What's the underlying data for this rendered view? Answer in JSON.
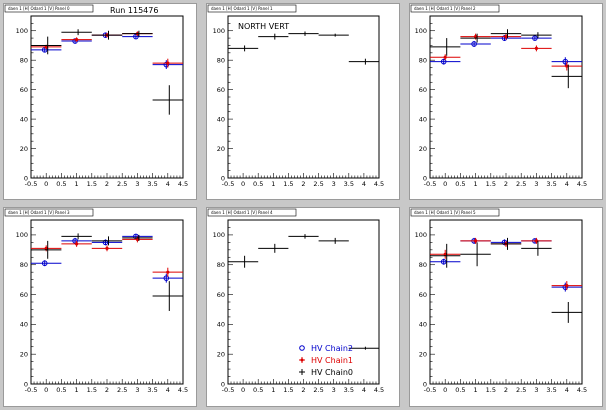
{
  "run_label": "Run 115476",
  "colors": {
    "chain2": "#0000cc",
    "chain1": "#dd0000",
    "chain0": "#000000"
  },
  "chart_data": [
    {
      "type": "scatter",
      "tag": "daen 1 [H] Odard 1 [V] Panel 0",
      "title": "",
      "xlim": [
        -0.5,
        4.5
      ],
      "ylim": [
        0,
        110
      ],
      "xticks": [
        "-0.5",
        "0",
        "0.5",
        "1",
        "1.5",
        "2",
        "2.5",
        "3",
        "3.5",
        "4",
        "4.5"
      ],
      "yticks": [
        "0",
        "20",
        "40",
        "60",
        "80",
        "100"
      ],
      "series": [
        {
          "key": "chain2",
          "x": [
            0,
            1,
            2,
            3,
            4
          ],
          "y": [
            87,
            93,
            97,
            96,
            77
          ],
          "yerr": [
            1.5,
            1.5,
            1.5,
            1.5,
            3
          ]
        },
        {
          "key": "chain1",
          "x": [
            0,
            1,
            2,
            3,
            4
          ],
          "y": [
            89,
            94,
            97,
            98,
            78
          ],
          "yerr": [
            1.5,
            1.5,
            1.5,
            1.5,
            3
          ]
        },
        {
          "key": "chain0",
          "x": [
            0,
            1,
            2,
            3,
            4
          ],
          "y": [
            90,
            99,
            97,
            98,
            53
          ],
          "yerr": [
            6,
            2,
            3,
            2,
            10
          ]
        }
      ]
    },
    {
      "type": "scatter",
      "tag": "daen 1 [H] Odard 1 [V] Panel 1",
      "title": "NORTH VERT",
      "xlim": [
        -0.5,
        4.5
      ],
      "ylim": [
        0,
        110
      ],
      "xticks": [
        "-0.5",
        "0",
        "0.5",
        "1",
        "1.5",
        "2",
        "2.5",
        "3",
        "3.5",
        "4",
        "4.5"
      ],
      "yticks": [
        "0",
        "20",
        "40",
        "60",
        "80",
        "100"
      ],
      "series": [
        {
          "key": "chain0",
          "x": [
            0,
            1,
            2,
            3,
            4
          ],
          "y": [
            88,
            96,
            98,
            97,
            79
          ],
          "yerr": [
            2,
            2,
            1.5,
            1,
            2
          ]
        }
      ]
    },
    {
      "type": "scatter",
      "tag": "daen 1 [H] Odard 1 [V] Panel 2",
      "title": "",
      "xlim": [
        -0.5,
        4.5
      ],
      "ylim": [
        0,
        110
      ],
      "xticks": [
        "-0.5",
        "0",
        "0.5",
        "1",
        "1.5",
        "2",
        "2.5",
        "3",
        "3.5",
        "4",
        "4.5"
      ],
      "yticks": [
        "0",
        "20",
        "40",
        "60",
        "80",
        "100"
      ],
      "series": [
        {
          "key": "chain2",
          "x": [
            0,
            1,
            2,
            3,
            4
          ],
          "y": [
            79,
            91,
            95,
            95,
            79
          ],
          "yerr": [
            2,
            2,
            2,
            1.5,
            3
          ]
        },
        {
          "key": "chain1",
          "x": [
            0,
            1,
            2,
            3,
            4
          ],
          "y": [
            82,
            96,
            96,
            88,
            76
          ],
          "yerr": [
            2,
            2,
            2,
            2,
            3
          ]
        },
        {
          "key": "chain0",
          "x": [
            0,
            1,
            2,
            3,
            4
          ],
          "y": [
            89,
            95,
            98,
            97,
            69
          ],
          "yerr": [
            6,
            3,
            3,
            2,
            8
          ]
        }
      ]
    },
    {
      "type": "scatter",
      "tag": "daen 1 [H] Odard 1 [V] Panel 3",
      "title": "",
      "xlim": [
        -0.5,
        4.5
      ],
      "ylim": [
        0,
        110
      ],
      "xticks": [
        "-0.5",
        "0",
        "0.5",
        "1",
        "1.5",
        "2",
        "2.5",
        "3",
        "3.5",
        "4",
        "4.5"
      ],
      "yticks": [
        "0",
        "20",
        "40",
        "60",
        "80",
        "100"
      ],
      "series": [
        {
          "key": "chain2",
          "x": [
            0,
            1,
            2,
            3,
            4
          ],
          "y": [
            81,
            96,
            95,
            99,
            71
          ],
          "yerr": [
            2,
            2,
            2,
            1.5,
            3
          ]
        },
        {
          "key": "chain1",
          "x": [
            0,
            1,
            2,
            3,
            4
          ],
          "y": [
            91,
            94,
            91,
            97,
            75
          ],
          "yerr": [
            2,
            2,
            2,
            2,
            3
          ]
        },
        {
          "key": "chain0",
          "x": [
            0,
            1,
            2,
            3,
            4
          ],
          "y": [
            90,
            99,
            96,
            98,
            59
          ],
          "yerr": [
            6,
            2,
            3,
            2,
            10
          ]
        }
      ]
    },
    {
      "type": "scatter",
      "tag": "daen 1 [H] Odard 1 [V] Panel 4",
      "title": "",
      "xlim": [
        -0.5,
        4.5
      ],
      "ylim": [
        0,
        110
      ],
      "xticks": [
        "-0.5",
        "0",
        "0.5",
        "1",
        "1.5",
        "2",
        "2.5",
        "3",
        "3.5",
        "4",
        "4.5"
      ],
      "yticks": [
        "0",
        "20",
        "40",
        "60",
        "80",
        "100"
      ],
      "series": [
        {
          "key": "chain0",
          "x": [
            0,
            1,
            2,
            3,
            4
          ],
          "y": [
            82,
            91,
            99,
            96,
            24
          ],
          "yerr": [
            4,
            3,
            1.5,
            2,
            1
          ]
        }
      ],
      "legend": {
        "placement": "bottom-right",
        "entries": [
          {
            "key": "chain2",
            "label": "HV Chain2",
            "marker": "circle"
          },
          {
            "key": "chain1",
            "label": "HV Chain1",
            "marker": "star"
          },
          {
            "key": "chain0",
            "label": "HV Chain0",
            "marker": "cross"
          }
        ]
      }
    },
    {
      "type": "scatter",
      "tag": "daen 1 [H] Odard 1 [V] Panel 5",
      "title": "",
      "xlim": [
        -0.5,
        4.5
      ],
      "ylim": [
        0,
        110
      ],
      "xticks": [
        "-0.5",
        "0",
        "0.5",
        "1",
        "1.5",
        "2",
        "2.5",
        "3",
        "3.5",
        "4",
        "4.5"
      ],
      "yticks": [
        "0",
        "20",
        "40",
        "60",
        "80",
        "100"
      ],
      "series": [
        {
          "key": "chain2",
          "x": [
            0,
            1,
            2,
            3,
            4
          ],
          "y": [
            82,
            96,
            95,
            96,
            65
          ],
          "yerr": [
            2,
            2,
            2,
            1.5,
            3
          ]
        },
        {
          "key": "chain1",
          "x": [
            0,
            1,
            2,
            3,
            4
          ],
          "y": [
            87,
            96,
            94,
            96,
            66
          ],
          "yerr": [
            3,
            2,
            2,
            2,
            3
          ]
        },
        {
          "key": "chain0",
          "x": [
            0,
            1,
            2,
            3,
            4
          ],
          "y": [
            86,
            87,
            94,
            91,
            48
          ],
          "yerr": [
            8,
            8,
            4,
            5,
            7
          ]
        }
      ]
    }
  ]
}
